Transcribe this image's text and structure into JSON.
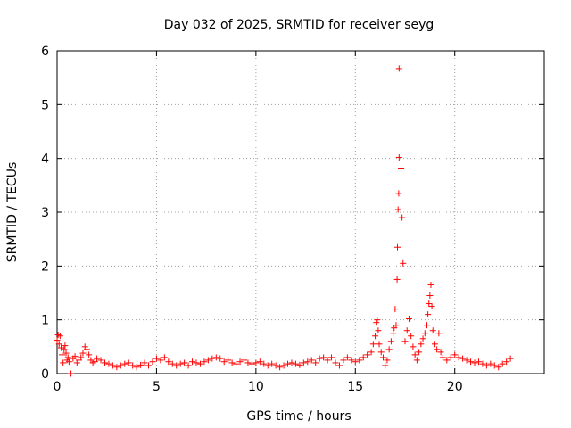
{
  "chart_data": {
    "type": "scatter",
    "title": "Day 032 of 2025, SRMTID for receiver seyg",
    "xlabel": "GPS time / hours",
    "ylabel": "SRMTID / TECUs",
    "xlim": [
      0,
      24.5
    ],
    "ylim": [
      0,
      6
    ],
    "xticks": [
      0,
      5,
      10,
      15,
      20
    ],
    "yticks": [
      0,
      1,
      2,
      3,
      4,
      5,
      6
    ],
    "grid": true,
    "marker": "+",
    "color": "#ff0000",
    "series": [
      {
        "name": "SRMTID",
        "points": [
          [
            0.0,
            0.62
          ],
          [
            0.05,
            0.72
          ],
          [
            0.1,
            0.55
          ],
          [
            0.15,
            0.7
          ],
          [
            0.2,
            0.48
          ],
          [
            0.25,
            0.35
          ],
          [
            0.3,
            0.2
          ],
          [
            0.35,
            0.45
          ],
          [
            0.4,
            0.52
          ],
          [
            0.45,
            0.38
          ],
          [
            0.5,
            0.25
          ],
          [
            0.55,
            0.3
          ],
          [
            0.6,
            0.22
          ],
          [
            0.7,
            0.0
          ],
          [
            0.8,
            0.28
          ],
          [
            0.9,
            0.32
          ],
          [
            1.0,
            0.2
          ],
          [
            1.1,
            0.25
          ],
          [
            1.2,
            0.3
          ],
          [
            1.3,
            0.38
          ],
          [
            1.4,
            0.5
          ],
          [
            1.5,
            0.45
          ],
          [
            1.6,
            0.35
          ],
          [
            1.7,
            0.25
          ],
          [
            1.8,
            0.2
          ],
          [
            1.9,
            0.22
          ],
          [
            2.0,
            0.28
          ],
          [
            2.2,
            0.25
          ],
          [
            2.4,
            0.2
          ],
          [
            2.6,
            0.18
          ],
          [
            2.8,
            0.15
          ],
          [
            3.0,
            0.12
          ],
          [
            3.2,
            0.15
          ],
          [
            3.4,
            0.18
          ],
          [
            3.6,
            0.2
          ],
          [
            3.8,
            0.15
          ],
          [
            4.0,
            0.12
          ],
          [
            4.2,
            0.16
          ],
          [
            4.4,
            0.2
          ],
          [
            4.6,
            0.15
          ],
          [
            4.8,
            0.22
          ],
          [
            5.0,
            0.28
          ],
          [
            5.2,
            0.25
          ],
          [
            5.4,
            0.3
          ],
          [
            5.6,
            0.22
          ],
          [
            5.8,
            0.18
          ],
          [
            6.0,
            0.15
          ],
          [
            6.2,
            0.18
          ],
          [
            6.4,
            0.2
          ],
          [
            6.6,
            0.15
          ],
          [
            6.8,
            0.22
          ],
          [
            7.0,
            0.2
          ],
          [
            7.2,
            0.18
          ],
          [
            7.4,
            0.22
          ],
          [
            7.6,
            0.25
          ],
          [
            7.8,
            0.28
          ],
          [
            8.0,
            0.3
          ],
          [
            8.2,
            0.28
          ],
          [
            8.4,
            0.22
          ],
          [
            8.6,
            0.25
          ],
          [
            8.8,
            0.2
          ],
          [
            9.0,
            0.18
          ],
          [
            9.2,
            0.22
          ],
          [
            9.4,
            0.25
          ],
          [
            9.6,
            0.2
          ],
          [
            9.8,
            0.18
          ],
          [
            10.0,
            0.2
          ],
          [
            10.2,
            0.22
          ],
          [
            10.4,
            0.18
          ],
          [
            10.6,
            0.15
          ],
          [
            10.8,
            0.18
          ],
          [
            11.0,
            0.15
          ],
          [
            11.2,
            0.12
          ],
          [
            11.4,
            0.15
          ],
          [
            11.6,
            0.18
          ],
          [
            11.8,
            0.2
          ],
          [
            12.0,
            0.18
          ],
          [
            12.2,
            0.16
          ],
          [
            12.4,
            0.2
          ],
          [
            12.6,
            0.22
          ],
          [
            12.8,
            0.25
          ],
          [
            13.0,
            0.2
          ],
          [
            13.2,
            0.28
          ],
          [
            13.4,
            0.3
          ],
          [
            13.6,
            0.25
          ],
          [
            13.8,
            0.3
          ],
          [
            14.0,
            0.2
          ],
          [
            14.2,
            0.15
          ],
          [
            14.4,
            0.25
          ],
          [
            14.6,
            0.3
          ],
          [
            14.8,
            0.25
          ],
          [
            15.0,
            0.22
          ],
          [
            15.2,
            0.25
          ],
          [
            15.4,
            0.3
          ],
          [
            15.6,
            0.35
          ],
          [
            15.8,
            0.4
          ],
          [
            15.9,
            0.55
          ],
          [
            16.0,
            0.7
          ],
          [
            16.05,
            0.95
          ],
          [
            16.1,
            1.0
          ],
          [
            16.15,
            0.8
          ],
          [
            16.2,
            0.55
          ],
          [
            16.3,
            0.4
          ],
          [
            16.4,
            0.3
          ],
          [
            16.5,
            0.15
          ],
          [
            16.6,
            0.25
          ],
          [
            16.7,
            0.45
          ],
          [
            16.8,
            0.6
          ],
          [
            16.9,
            0.75
          ],
          [
            16.95,
            0.85
          ],
          [
            17.0,
            1.2
          ],
          [
            17.05,
            0.9
          ],
          [
            17.1,
            1.75
          ],
          [
            17.12,
            2.35
          ],
          [
            17.15,
            3.05
          ],
          [
            17.18,
            3.35
          ],
          [
            17.2,
            4.02
          ],
          [
            17.2,
            5.67
          ],
          [
            17.3,
            3.82
          ],
          [
            17.35,
            2.9
          ],
          [
            17.4,
            2.05
          ],
          [
            17.5,
            0.6
          ],
          [
            17.6,
            0.8
          ],
          [
            17.7,
            1.02
          ],
          [
            17.8,
            0.7
          ],
          [
            17.9,
            0.5
          ],
          [
            18.0,
            0.35
          ],
          [
            18.1,
            0.25
          ],
          [
            18.2,
            0.4
          ],
          [
            18.3,
            0.55
          ],
          [
            18.4,
            0.65
          ],
          [
            18.5,
            0.75
          ],
          [
            18.6,
            0.9
          ],
          [
            18.65,
            1.1
          ],
          [
            18.7,
            1.3
          ],
          [
            18.75,
            1.45
          ],
          [
            18.8,
            1.65
          ],
          [
            18.85,
            1.25
          ],
          [
            18.9,
            0.8
          ],
          [
            19.0,
            0.55
          ],
          [
            19.1,
            0.45
          ],
          [
            19.2,
            0.75
          ],
          [
            19.3,
            0.4
          ],
          [
            19.4,
            0.3
          ],
          [
            19.6,
            0.25
          ],
          [
            19.8,
            0.3
          ],
          [
            20.0,
            0.35
          ],
          [
            20.2,
            0.3
          ],
          [
            20.4,
            0.28
          ],
          [
            20.6,
            0.25
          ],
          [
            20.8,
            0.22
          ],
          [
            21.0,
            0.2
          ],
          [
            21.2,
            0.22
          ],
          [
            21.4,
            0.18
          ],
          [
            21.6,
            0.15
          ],
          [
            21.8,
            0.18
          ],
          [
            22.0,
            0.15
          ],
          [
            22.2,
            0.12
          ],
          [
            22.4,
            0.18
          ],
          [
            22.6,
            0.22
          ],
          [
            22.8,
            0.28
          ]
        ]
      }
    ]
  }
}
